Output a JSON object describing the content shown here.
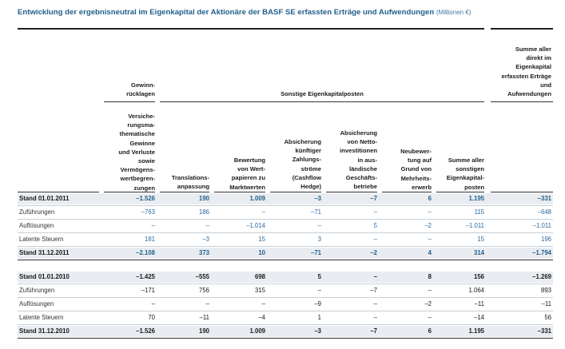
{
  "title": {
    "main": "Entwicklung der ergebnisneutral im Eigenkapital der Aktionäre der BASF SE erfassten Erträge und Aufwendungen",
    "unit": "(Millionen €)"
  },
  "headers": {
    "gewinnruecklagen": "Gewinn-\nrücklagen",
    "sonstige": "Sonstige Eigenkapitalposten",
    "summe_direkt": "Summe aller\ndirekt im\nEigenkapital\nerfassten Erträge\nund\nAufwendungen",
    "columns": [
      "Versiche-\nrungsma-\nthematische\nGewinne\nund Verluste\nsowie\nVermögens-\nwertbegren-\nzungen",
      "Translations-\nanpassung",
      "Bewertung\nvon Wert-\npapieren zu\nMarktwerten",
      "Absicherung\nkünftiger\nZahlungs-\nströme\n(Cashflow\nHedge)",
      "Absicherung\nvon Netto-\ninvestitionen\nin aus-\nländische\nGeschäfts-\nbetriebe",
      "Neubewer-\ntung auf\nGrund von\nMehrheits-\nerwerb",
      "Summe aller\nsonstigen\nEigenkapital-\nposten"
    ]
  },
  "section_2011": [
    {
      "label": "Stand 01.01.2011",
      "bold": true,
      "values": [
        "–1.526",
        "190",
        "1.009",
        "–3",
        "–7",
        "6",
        "1.195",
        "–331"
      ]
    },
    {
      "label": "Zuführungen",
      "bold": false,
      "values": [
        "–763",
        "186",
        "–",
        "–71",
        "–",
        "–",
        "115",
        "–648"
      ]
    },
    {
      "label": "Auflösungen",
      "bold": false,
      "values": [
        "–",
        "–",
        "–1.014",
        "–",
        "5",
        "–2",
        "–1.011",
        "–1.011"
      ]
    },
    {
      "label": "Latente Steuern",
      "bold": false,
      "values": [
        "181",
        "–3",
        "15",
        "3",
        "–",
        "–",
        "15",
        "196"
      ]
    },
    {
      "label": "Stand 31.12.2011",
      "bold": true,
      "values": [
        "–2.108",
        "373",
        "10",
        "–71",
        "–2",
        "4",
        "314",
        "–1.794"
      ]
    }
  ],
  "section_2010": [
    {
      "label": "Stand 01.01.2010",
      "bold": true,
      "values": [
        "–1.425",
        "–555",
        "698",
        "5",
        "–",
        "8",
        "156",
        "–1.269"
      ]
    },
    {
      "label": "Zuführungen",
      "bold": false,
      "values": [
        "–171",
        "756",
        "315",
        "–",
        "–7",
        "–",
        "1.064",
        "893"
      ]
    },
    {
      "label": "Auflösungen",
      "bold": false,
      "values": [
        "–",
        "–",
        "–",
        "–9",
        "–",
        "–2",
        "–11",
        "–11"
      ]
    },
    {
      "label": "Latente Steuern",
      "bold": false,
      "values": [
        "70",
        "–11",
        "–4",
        "1",
        "–",
        "–",
        "–14",
        "56"
      ]
    },
    {
      "label": "Stand 31.12.2010",
      "bold": true,
      "values": [
        "–1.526",
        "190",
        "1.009",
        "–3",
        "–7",
        "6",
        "1.195",
        "–331"
      ]
    }
  ]
}
